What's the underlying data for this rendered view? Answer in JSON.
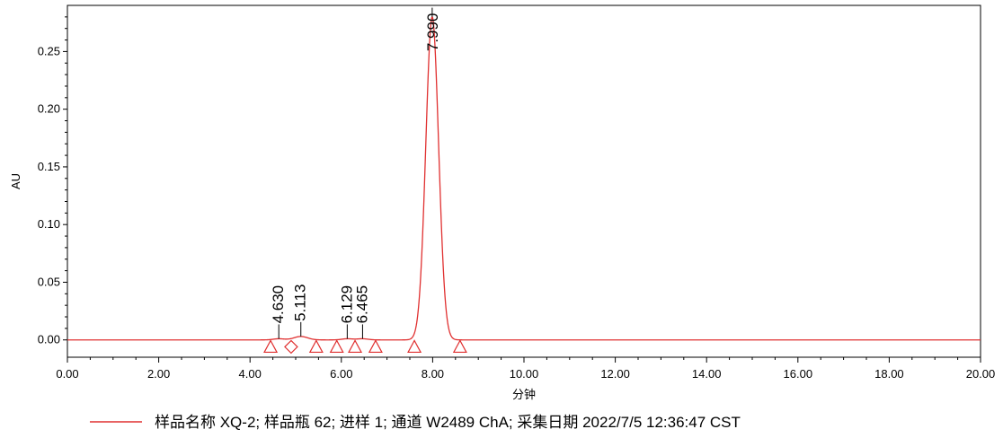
{
  "chart_data": {
    "type": "line",
    "ylabel": "AU",
    "xlabel": "分钟",
    "xlim": [
      0,
      20
    ],
    "ylim": [
      -0.015,
      0.29
    ],
    "x_ticks": [
      "0.00",
      "2.00",
      "4.00",
      "6.00",
      "8.00",
      "10.00",
      "12.00",
      "14.00",
      "16.00",
      "18.00",
      "20.00"
    ],
    "y_ticks": [
      "0.00",
      "0.05",
      "0.10",
      "0.15",
      "0.20",
      "0.25"
    ],
    "grid": false,
    "legend_position": "bottom",
    "colors": {
      "series": "#e03030",
      "axis": "#000000"
    },
    "series": [
      {
        "name": "样品名称 XQ-2; 样品瓶 62; 进样 1; 通道 W2489 ChA; 采集日期 2022/7/5 12:36:47 CST",
        "baseline": 0.0,
        "peaks": [
          {
            "rt": 4.63,
            "height": 0.001,
            "width": 0.12
          },
          {
            "rt": 5.113,
            "height": 0.003,
            "width": 0.15
          },
          {
            "rt": 6.129,
            "height": 0.001,
            "width": 0.12
          },
          {
            "rt": 6.465,
            "height": 0.001,
            "width": 0.12
          },
          {
            "rt": 7.99,
            "height": 0.28,
            "width": 0.14
          }
        ]
      }
    ],
    "peak_labels": [
      {
        "rt": 4.63,
        "label": "4.630"
      },
      {
        "rt": 5.113,
        "label": "5.113"
      },
      {
        "rt": 6.129,
        "label": "6.129"
      },
      {
        "rt": 6.465,
        "label": "6.465"
      },
      {
        "rt": 7.99,
        "label": "7.990"
      }
    ],
    "integration_markers": [
      {
        "x": 4.45,
        "shape": "triangle"
      },
      {
        "x": 4.9,
        "shape": "diamond"
      },
      {
        "x": 5.45,
        "shape": "triangle"
      },
      {
        "x": 5.9,
        "shape": "triangle"
      },
      {
        "x": 6.3,
        "shape": "triangle"
      },
      {
        "x": 6.75,
        "shape": "triangle"
      },
      {
        "x": 7.6,
        "shape": "triangle"
      },
      {
        "x": 8.6,
        "shape": "triangle"
      }
    ]
  }
}
